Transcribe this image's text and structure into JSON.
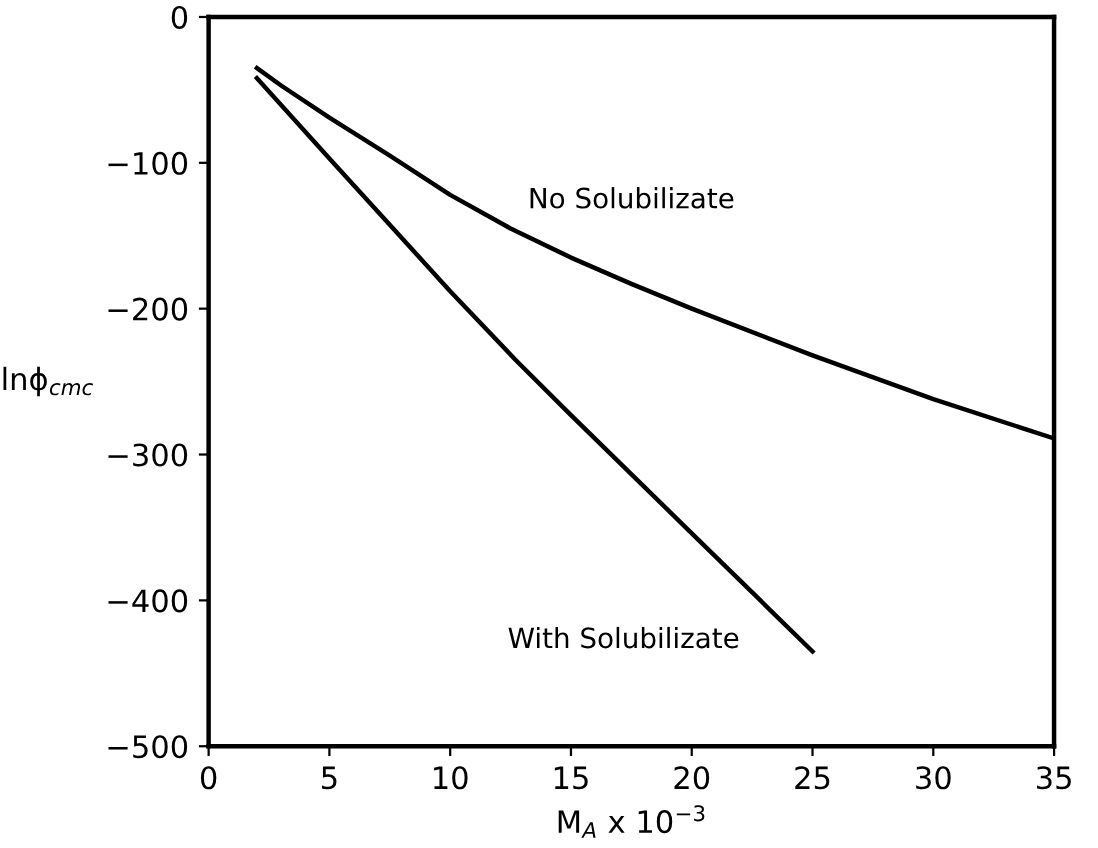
{
  "chart_data": {
    "type": "line",
    "xlabel": "M$_{A}$ x 10$^{−3}$",
    "ylabel": "lnϕ$_{cmc}$",
    "xlim": [
      0,
      35
    ],
    "xticks": [
      0,
      5,
      10,
      15,
      20,
      25,
      30,
      35
    ],
    "ylim": [
      -500,
      0
    ],
    "yticks": [
      -500,
      -400,
      -300,
      -200,
      -100,
      0
    ],
    "grid": false,
    "legend": false,
    "marker": "none",
    "line_style": "solid",
    "series": [
      {
        "name": "No Solubilizate",
        "color": "#000000",
        "x": [
          2,
          3,
          5,
          7.5,
          10,
          12.5,
          15,
          17.5,
          20,
          25,
          30,
          35
        ],
        "values": [
          -35,
          -47,
          -69,
          -95,
          -122,
          -145,
          -165,
          -183,
          -200,
          -232,
          -262,
          -289
        ]
      },
      {
        "name": "With Solubilizate",
        "color": "#000000",
        "x": [
          2,
          5,
          10,
          12.7,
          15,
          20,
          25
        ],
        "values": [
          -42,
          -97,
          -188,
          -235,
          -273,
          -354,
          -435
        ]
      }
    ]
  }
}
